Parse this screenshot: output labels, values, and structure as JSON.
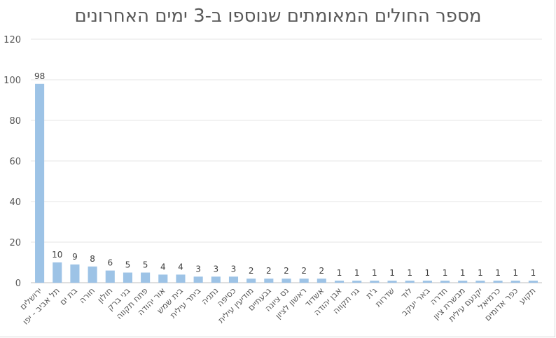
{
  "chart_data": {
    "type": "bar",
    "title": "מספר החולים המאומתים שנוספו ב-3 ימים האחרונים",
    "categories": [
      "ירושלים",
      "תל אביב - יפו",
      "בת ים",
      "חורה",
      "חולון",
      "בני ברק",
      "פתח תקווה",
      "אור יהודה",
      "בית שמש",
      "ביתר עילית",
      "נתניה",
      "כסיפה",
      "מודיעין עילית",
      "גבעתיים",
      "נס ציונה",
      "ראשון לציון",
      "אשדוד",
      "אבן יהודה",
      "גני תקווה",
      "ג'ת",
      "שדרות",
      "לוד",
      "באר יעקב",
      "חדרה",
      "מבשרת ציון",
      "יקנעם עילית",
      "כרמיאל",
      "כפר אדומים",
      "תקוע"
    ],
    "values": [
      98,
      10,
      9,
      8,
      6,
      5,
      5,
      4,
      4,
      3,
      3,
      3,
      2,
      2,
      2,
      2,
      2,
      1,
      1,
      1,
      1,
      1,
      1,
      1,
      1,
      1,
      1,
      1,
      1
    ],
    "ylim": [
      0,
      120
    ],
    "yticks": [
      0,
      20,
      40,
      60,
      80,
      100,
      120
    ],
    "grid": true,
    "legend": "none",
    "bar_color": "#9dc3e6",
    "xlabel": "",
    "ylabel": ""
  }
}
